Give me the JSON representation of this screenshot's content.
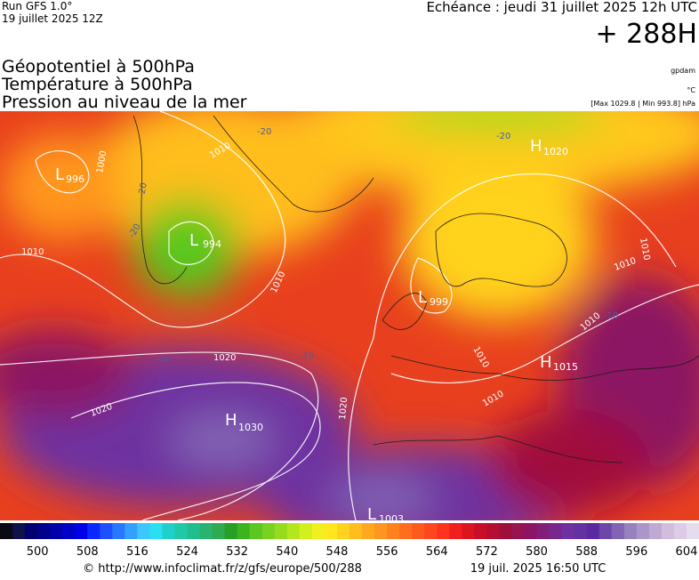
{
  "header": {
    "run": "Run GFS 1.0°",
    "run_date": "19 juillet 2025 12Z",
    "valid": "Echéance : jeudi 31 juillet 2025 12h UTC",
    "lead": "+ 288H"
  },
  "titles": [
    "Géopotentiel à 500hPa",
    "Température à 500hPa",
    "Pression au niveau de la mer"
  ],
  "units": [
    "gpdam",
    "°C",
    "[Max 1029.8 | Min 993.8] hPa"
  ],
  "centers": [
    {
      "letter": "L",
      "value": 996
    },
    {
      "letter": "L",
      "value": 994
    },
    {
      "letter": "L",
      "value": 999
    },
    {
      "letter": "H",
      "value": 1020
    },
    {
      "letter": "H",
      "value": 1015
    },
    {
      "letter": "H",
      "value": 1030
    },
    {
      "letter": "L",
      "value": 1003
    }
  ],
  "isobar_labels": [
    1010,
    1000,
    1010,
    1020,
    1020,
    1020,
    1010,
    1010,
    1010,
    1010,
    1010,
    1010
  ],
  "temperature_labels": [
    -20,
    -20,
    -20,
    -20,
    -10,
    -10,
    -10
  ],
  "legend": {
    "range": [
      494,
      606
    ],
    "ticks": [
      500,
      508,
      516,
      524,
      532,
      540,
      548,
      556,
      564,
      572,
      580,
      588,
      596,
      604
    ],
    "colors": [
      "#0a0a14",
      "#10104a",
      "#000070",
      "#00008c",
      "#0000aa",
      "#0000c8",
      "#0000e6",
      "#0a28ff",
      "#1e50ff",
      "#2878ff",
      "#32a0ff",
      "#3cc8ff",
      "#28e0f0",
      "#20d0c8",
      "#20c8a8",
      "#20be8c",
      "#28b46e",
      "#30aa50",
      "#28a028",
      "#3cb41e",
      "#5ac81e",
      "#78d21e",
      "#96dc1e",
      "#b4e61e",
      "#d2f01e",
      "#f0f01e",
      "#ffe61e",
      "#ffd21e",
      "#ffbe1e",
      "#ffaa1e",
      "#ff961e",
      "#ff821e",
      "#ff6e1e",
      "#ff5a1e",
      "#ff461e",
      "#ff321e",
      "#f01e1e",
      "#dc141e",
      "#c80f28",
      "#b40f32",
      "#a00f3c",
      "#961450",
      "#8c1464",
      "#821e78",
      "#78288c",
      "#6e32a0",
      "#6432a0",
      "#5a28a0",
      "#6e46aa",
      "#8264b4",
      "#9682be",
      "#aa96c8",
      "#beaad2",
      "#d2bedc",
      "#dccce6",
      "#e6dcf0"
    ]
  },
  "footer": {
    "source": "© http://www.infoclimat.fr/z/gfs/europe/500/288",
    "timestamp": "19 juil. 2025 16:50 UTC"
  }
}
